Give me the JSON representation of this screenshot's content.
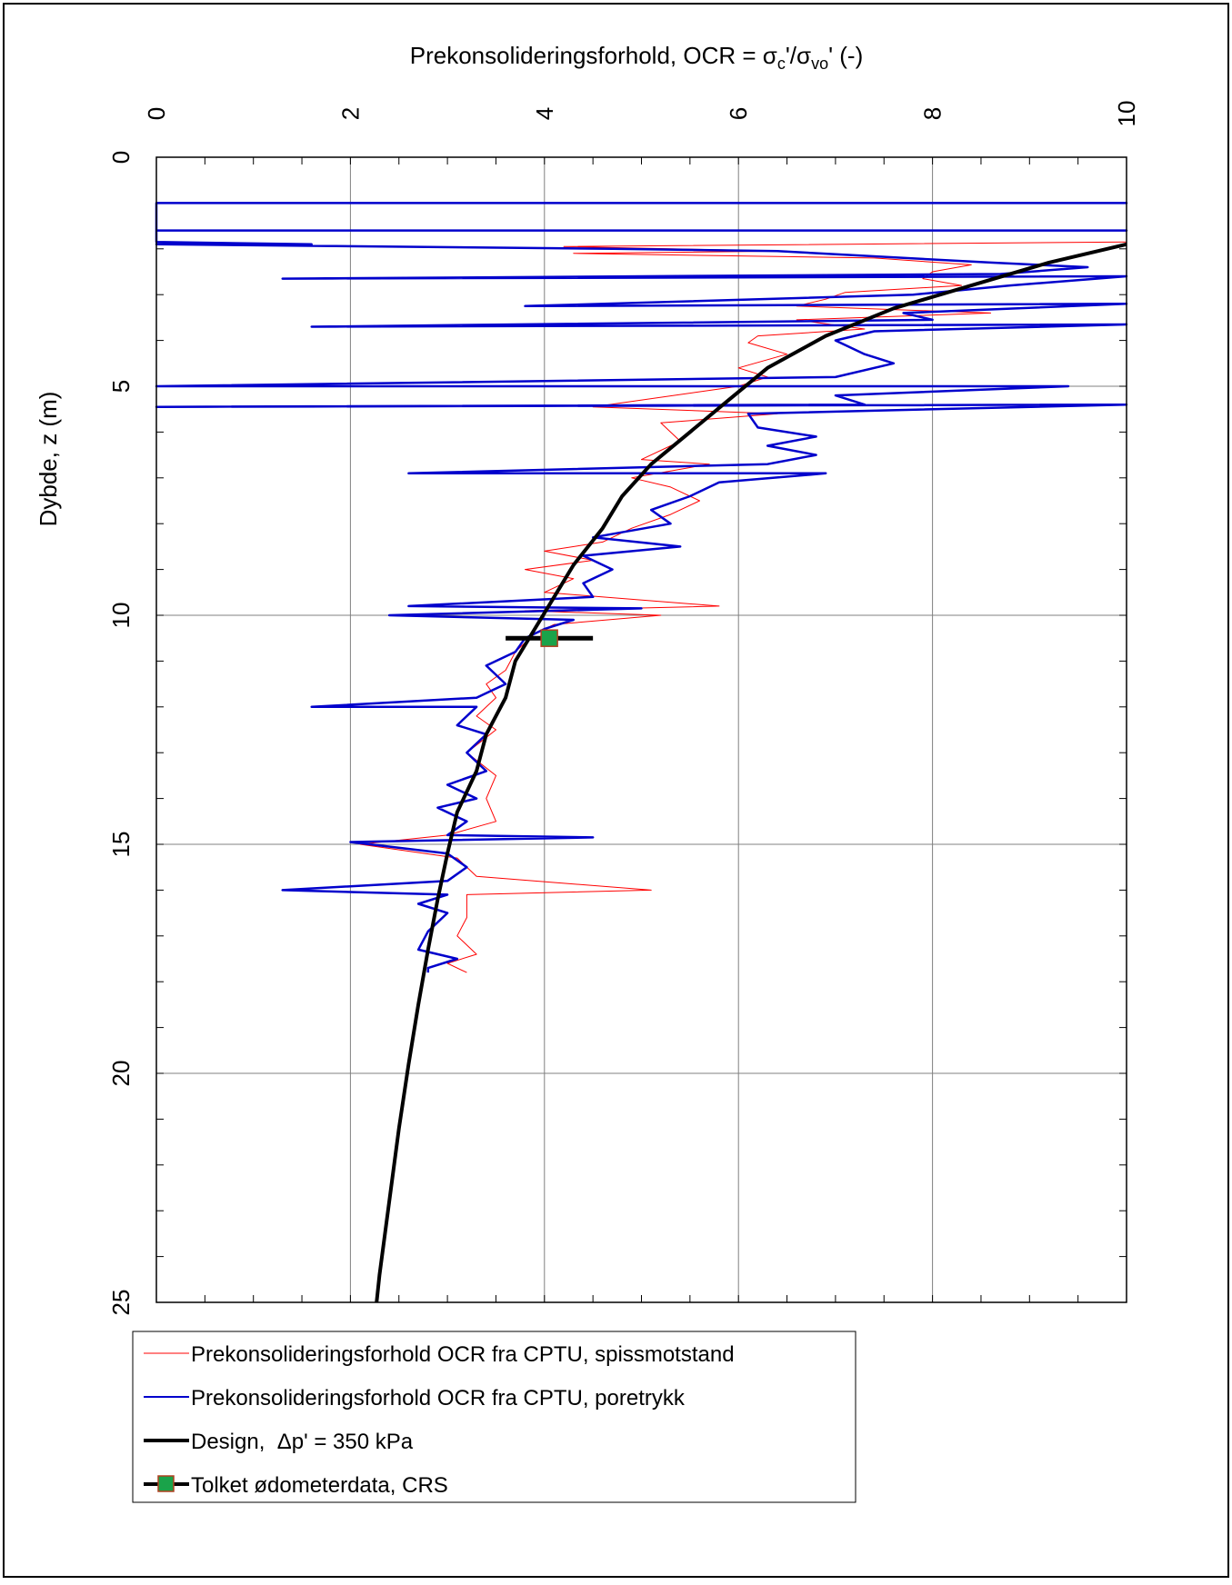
{
  "chart_data": {
    "type": "line",
    "title": "Prekonsolideringsforhold, OCR = σc'/σvo' (-)",
    "title_parts": {
      "prefix": "Prekonsolideringsforhold, OCR = σ",
      "sub1": "c",
      "mid": "'/σ",
      "sub2": "vo",
      "suffix": "' (-)"
    },
    "xlabel": "Prekonsolideringsforhold, OCR = σc'/σvo' (-)",
    "ylabel": "Dybde, z (m)",
    "x_axis_position": "top",
    "x_ticklabel_rotation": "vertical",
    "y_inverted": true,
    "xlim": [
      0,
      10
    ],
    "ylim": [
      0,
      25
    ],
    "x_ticks": [
      "0",
      "2",
      "4",
      "6",
      "8",
      "10"
    ],
    "y_ticks": [
      "0",
      "5",
      "10",
      "15",
      "20",
      "25"
    ],
    "grid": true,
    "legend_position": "bottom-left, below plot",
    "series": [
      {
        "name": "Prekonsolideringsforhold OCR fra CPTU, spissmotstand",
        "color": "#ff0000",
        "style": "thin-line",
        "points": [
          [
            10,
            1.85
          ],
          [
            4.2,
            1.95
          ],
          [
            6.5,
            2.05
          ],
          [
            4.3,
            2.1
          ],
          [
            7.4,
            2.2
          ],
          [
            8.4,
            2.35
          ],
          [
            8.0,
            2.5
          ],
          [
            7.9,
            2.65
          ],
          [
            8.3,
            2.8
          ],
          [
            7.1,
            2.95
          ],
          [
            6.9,
            3.1
          ],
          [
            6.6,
            3.25
          ],
          [
            8.6,
            3.4
          ],
          [
            6.6,
            3.55
          ],
          [
            7.3,
            3.75
          ],
          [
            6.2,
            3.9
          ],
          [
            6.1,
            4.05
          ],
          [
            6.5,
            4.3
          ],
          [
            6.0,
            4.6
          ],
          [
            6.3,
            4.8
          ],
          [
            6.0,
            5.0
          ],
          [
            4.5,
            5.45
          ],
          [
            6.4,
            5.6
          ],
          [
            5.2,
            5.8
          ],
          [
            5.4,
            6.2
          ],
          [
            5.0,
            6.6
          ],
          [
            5.7,
            6.7
          ],
          [
            4.9,
            7.0
          ],
          [
            5.3,
            7.2
          ],
          [
            5.6,
            7.5
          ],
          [
            5.3,
            7.8
          ],
          [
            4.9,
            8.1
          ],
          [
            4.6,
            8.4
          ],
          [
            4.0,
            8.6
          ],
          [
            4.5,
            8.8
          ],
          [
            3.8,
            9.0
          ],
          [
            4.3,
            9.2
          ],
          [
            4.0,
            9.5
          ],
          [
            5.8,
            9.8
          ],
          [
            3.8,
            9.9
          ],
          [
            5.2,
            10.0
          ],
          [
            4.1,
            10.2
          ],
          [
            3.9,
            10.4
          ],
          [
            3.7,
            10.8
          ],
          [
            3.6,
            11.2
          ],
          [
            3.4,
            11.5
          ],
          [
            3.5,
            11.8
          ],
          [
            3.3,
            12.2
          ],
          [
            3.5,
            12.5
          ],
          [
            3.2,
            13.0
          ],
          [
            3.5,
            13.5
          ],
          [
            3.4,
            14.0
          ],
          [
            3.5,
            14.5
          ],
          [
            3.0,
            14.8
          ],
          [
            2.1,
            15.0
          ],
          [
            3.1,
            15.3
          ],
          [
            3.3,
            15.7
          ],
          [
            5.1,
            16.0
          ],
          [
            3.2,
            16.1
          ],
          [
            3.2,
            16.6
          ],
          [
            3.1,
            17.0
          ],
          [
            3.3,
            17.4
          ],
          [
            3.0,
            17.6
          ],
          [
            3.2,
            17.8
          ]
        ]
      },
      {
        "name": "Prekonsolideringsforhold OCR fra CPTU, poretrykk",
        "color": "#0000cc",
        "style": "line",
        "points": [
          [
            0,
            1.0
          ],
          [
            10,
            1.0
          ],
          [
            0,
            1.0
          ],
          [
            0,
            1.6
          ],
          [
            10,
            1.6
          ],
          [
            0,
            1.6
          ],
          [
            0,
            1.85
          ],
          [
            1.6,
            1.9
          ],
          [
            0,
            1.9
          ],
          [
            4.7,
            2.0
          ],
          [
            6.4,
            2.05
          ],
          [
            8.6,
            2.3
          ],
          [
            9.6,
            2.4
          ],
          [
            8.7,
            2.55
          ],
          [
            1.3,
            2.65
          ],
          [
            10,
            2.6
          ],
          [
            8.8,
            2.8
          ],
          [
            7.8,
            3.0
          ],
          [
            3.8,
            3.25
          ],
          [
            10,
            3.2
          ],
          [
            7.7,
            3.4
          ],
          [
            8.0,
            3.55
          ],
          [
            1.6,
            3.7
          ],
          [
            10,
            3.65
          ],
          [
            7.4,
            3.8
          ],
          [
            7.0,
            4.0
          ],
          [
            7.3,
            4.3
          ],
          [
            7.6,
            4.5
          ],
          [
            7.0,
            4.8
          ],
          [
            0,
            5.0
          ],
          [
            9.4,
            5.0
          ],
          [
            7.0,
            5.2
          ],
          [
            7.3,
            5.4
          ],
          [
            0,
            5.45
          ],
          [
            10,
            5.4
          ],
          [
            6.1,
            5.6
          ],
          [
            6.2,
            5.9
          ],
          [
            6.8,
            6.1
          ],
          [
            6.3,
            6.3
          ],
          [
            6.8,
            6.5
          ],
          [
            6.3,
            6.7
          ],
          [
            2.6,
            6.9
          ],
          [
            6.9,
            6.9
          ],
          [
            5.8,
            7.1
          ],
          [
            5.5,
            7.4
          ],
          [
            5.1,
            7.7
          ],
          [
            5.3,
            8.0
          ],
          [
            4.5,
            8.3
          ],
          [
            5.4,
            8.5
          ],
          [
            4.4,
            8.7
          ],
          [
            4.7,
            9.0
          ],
          [
            4.4,
            9.3
          ],
          [
            4.5,
            9.6
          ],
          [
            2.6,
            9.8
          ],
          [
            5.0,
            9.85
          ],
          [
            2.4,
            10.0
          ],
          [
            4.3,
            10.1
          ],
          [
            4.0,
            10.3
          ],
          [
            3.8,
            10.5
          ],
          [
            3.7,
            10.8
          ],
          [
            3.4,
            11.1
          ],
          [
            3.6,
            11.5
          ],
          [
            3.3,
            11.8
          ],
          [
            1.6,
            12.0
          ],
          [
            3.3,
            12.0
          ],
          [
            3.1,
            12.4
          ],
          [
            3.4,
            12.6
          ],
          [
            3.2,
            13.0
          ],
          [
            3.4,
            13.4
          ],
          [
            3.0,
            13.7
          ],
          [
            3.3,
            14.0
          ],
          [
            2.9,
            14.2
          ],
          [
            3.2,
            14.5
          ],
          [
            3.0,
            14.8
          ],
          [
            4.5,
            14.85
          ],
          [
            2.0,
            14.95
          ],
          [
            3.0,
            15.2
          ],
          [
            3.2,
            15.5
          ],
          [
            3.0,
            15.8
          ],
          [
            1.3,
            16.0
          ],
          [
            3.0,
            16.1
          ],
          [
            2.7,
            16.3
          ],
          [
            3.0,
            16.5
          ],
          [
            2.8,
            16.9
          ],
          [
            2.7,
            17.3
          ],
          [
            3.1,
            17.5
          ],
          [
            2.8,
            17.7
          ],
          [
            2.8,
            17.8
          ]
        ]
      },
      {
        "name": "Design,  Δp' = 350 kPa",
        "color": "#000000",
        "style": "thick-line",
        "points": [
          [
            10.0,
            1.9
          ],
          [
            9.2,
            2.3
          ],
          [
            8.4,
            2.8
          ],
          [
            7.6,
            3.3
          ],
          [
            6.9,
            3.9
          ],
          [
            6.3,
            4.6
          ],
          [
            5.9,
            5.3
          ],
          [
            5.5,
            6.0
          ],
          [
            5.1,
            6.7
          ],
          [
            4.8,
            7.4
          ],
          [
            4.6,
            8.1
          ],
          [
            4.3,
            8.9
          ],
          [
            4.1,
            9.6
          ],
          [
            3.9,
            10.3
          ],
          [
            3.7,
            11.0
          ],
          [
            3.6,
            11.8
          ],
          [
            3.4,
            12.6
          ],
          [
            3.3,
            13.4
          ],
          [
            3.1,
            14.3
          ],
          [
            3.0,
            15.2
          ],
          [
            2.9,
            16.2
          ],
          [
            2.8,
            17.3
          ],
          [
            2.7,
            18.5
          ],
          [
            2.6,
            19.8
          ],
          [
            2.5,
            21.2
          ],
          [
            2.4,
            22.8
          ],
          [
            2.3,
            24.4
          ],
          [
            2.27,
            25.0
          ]
        ]
      },
      {
        "name": "Tolket ødometerdata, CRS",
        "color": "#000000",
        "marker_color": "#1aa34a",
        "style": "marker-with-bar",
        "points": [
          [
            4.05,
            10.5
          ]
        ],
        "bar": {
          "from": 3.6,
          "to": 4.5,
          "z": 10.5
        }
      }
    ]
  }
}
